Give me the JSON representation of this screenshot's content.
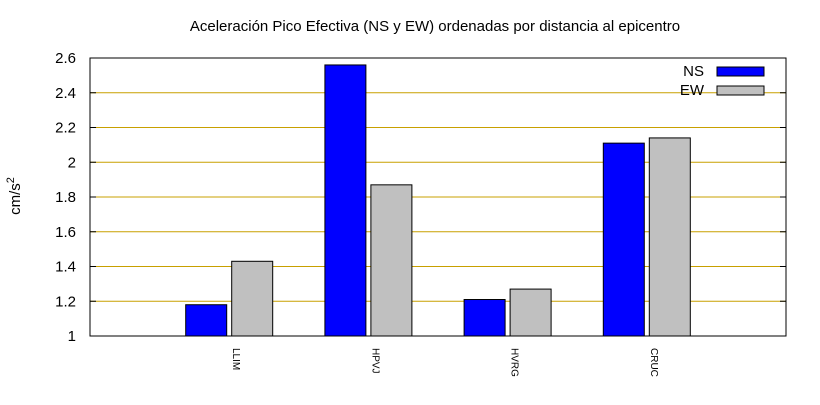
{
  "chart_data": {
    "type": "bar",
    "title": "Aceleración Pico Efectiva (NS y EW) ordenadas por distancia al epicentro",
    "ylabel": "cm/s",
    "ylabel_superscript": "2",
    "xlabel": "",
    "categories": [
      "LLIM",
      "HPVJ",
      "HVRG",
      "CRUC"
    ],
    "series": [
      {
        "name": "NS",
        "color": "#0000ff",
        "values": [
          1.18,
          2.56,
          1.21,
          2.11
        ]
      },
      {
        "name": "EW",
        "color": "#c0c0c0",
        "values": [
          1.43,
          1.87,
          1.27,
          2.14
        ]
      }
    ],
    "ylim": [
      1,
      2.6
    ],
    "yticks": [
      "1",
      "1.2",
      "1.4",
      "1.6",
      "1.8",
      "2",
      "2.2",
      "2.4",
      "2.6"
    ],
    "grid": "horizontal",
    "grid_color": "#c8a000",
    "legend_position": "top-right",
    "category_label_rotation": "vertical"
  }
}
